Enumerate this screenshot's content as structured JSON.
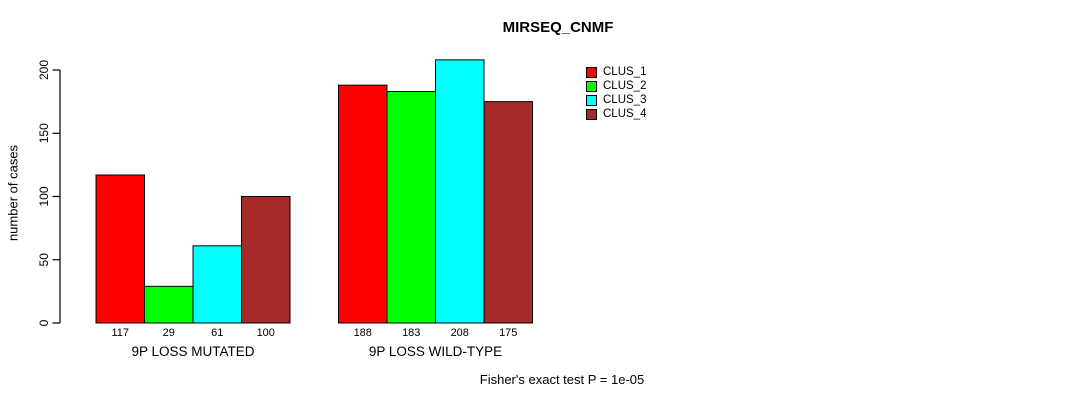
{
  "title": "MIRSEQ_CNMF",
  "ylabel": "number of cases",
  "footer": "Fisher's exact test P = 1e-05",
  "chart_data": {
    "type": "bar",
    "title": "MIRSEQ_CNMF",
    "xlabel": "",
    "ylabel": "number of cases",
    "categories": [
      "9P LOSS MUTATED",
      "9P LOSS WILD-TYPE"
    ],
    "series": [
      {
        "name": "CLUS_1",
        "values": [
          117,
          188
        ]
      },
      {
        "name": "CLUS_2",
        "values": [
          29,
          183
        ]
      },
      {
        "name": "CLUS_3",
        "values": [
          61,
          208
        ]
      },
      {
        "name": "CLUS_4",
        "values": [
          100,
          175
        ]
      }
    ],
    "groups": [
      {
        "label": "9P LOSS MUTATED",
        "values": [
          117,
          29,
          61,
          100
        ]
      },
      {
        "label": "9P LOSS WILD-TYPE",
        "values": [
          188,
          183,
          208,
          175
        ]
      }
    ],
    "series_names": [
      "CLUS_1",
      "CLUS_2",
      "CLUS_3",
      "CLUS_4"
    ],
    "colors": [
      "#FF0000",
      "#00FF00",
      "#00FFFF",
      "#A52A2A"
    ],
    "yticks": [
      0,
      50,
      100,
      150,
      200
    ],
    "ylim": [
      0,
      216
    ],
    "bar_value_labels": true,
    "legend_position": "top-right",
    "grid": false,
    "annotation": "Fisher's exact test P = 1e-05"
  }
}
